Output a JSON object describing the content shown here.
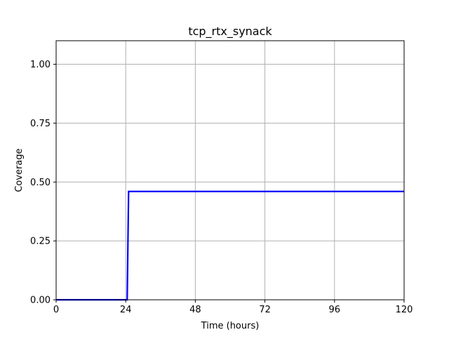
{
  "chart_data": {
    "type": "line",
    "title": "tcp_rtx_synack",
    "xlabel": "Time (hours)",
    "ylabel": "Coverage",
    "xlim": [
      0,
      120
    ],
    "ylim": [
      0,
      1.1
    ],
    "x_ticks": [
      0,
      24,
      48,
      72,
      96,
      120
    ],
    "y_ticks": [
      0.0,
      0.25,
      0.5,
      0.75,
      1.0
    ],
    "x_tick_labels": [
      "0",
      "24",
      "48",
      "72",
      "96",
      "120"
    ],
    "y_tick_labels": [
      "0.00",
      "0.25",
      "0.50",
      "0.75",
      "1.00"
    ],
    "grid": true,
    "series": [
      {
        "color": "#0000ff",
        "x": [
          0,
          24.5,
          25.0,
          120
        ],
        "y": [
          0.0,
          0.0,
          0.46,
          0.46
        ]
      }
    ]
  }
}
